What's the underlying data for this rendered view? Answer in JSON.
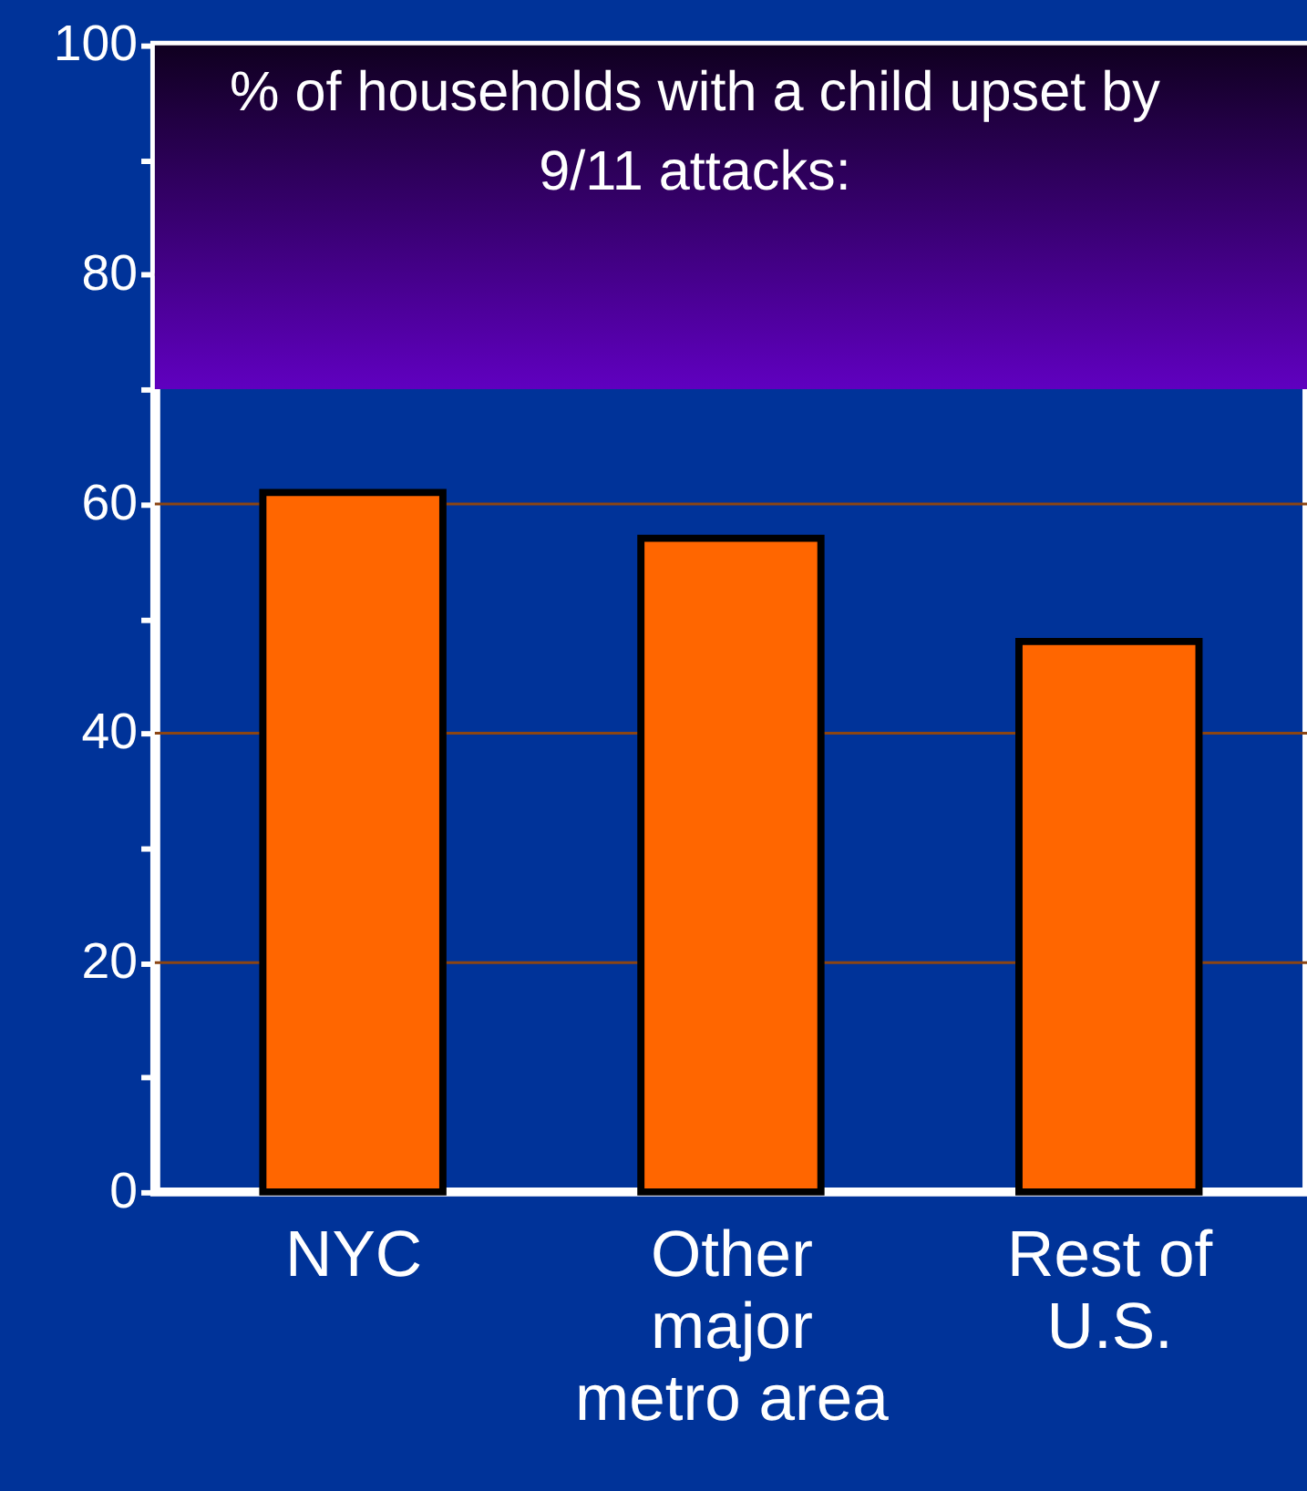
{
  "chart_data": {
    "type": "bar",
    "title": "% of households with a child upset by 9/11 attacks:",
    "categories": [
      "NYC",
      "Other\nmajor\nmetro area",
      "Rest of\nU.S."
    ],
    "values": [
      61,
      57,
      48
    ],
    "color": "#ff6600",
    "ylim": [
      0,
      100
    ],
    "yticks": [
      0,
      {
        "value": 10,
        "label": null
      },
      20,
      {
        "value": 30,
        "label": null
      },
      40,
      {
        "value": 50,
        "label": null
      },
      60,
      {
        "value": 70,
        "label": null
      },
      80,
      {
        "value": 90,
        "label": null
      },
      100
    ],
    "grid": "y",
    "bands": [
      {
        "axis": "y",
        "from": 70,
        "to": 100,
        "color": "#6000c0"
      }
    ]
  }
}
